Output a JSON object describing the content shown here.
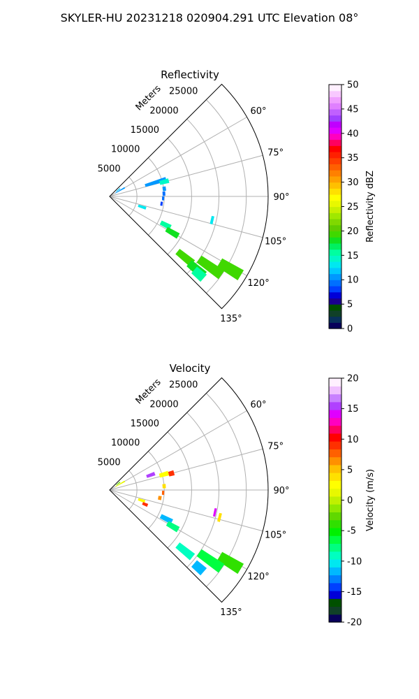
{
  "figure": {
    "title": "SKYLER-HU  20231218  020904.291 UTC Elevation 08°"
  },
  "chart_data": [
    {
      "type": "polar-sector",
      "title": "Reflectivity",
      "range_label": "Meters",
      "r_ticks": [
        5000,
        10000,
        15000,
        20000,
        25000
      ],
      "r_max": 29000,
      "theta_range_deg": [
        45,
        135
      ],
      "theta_ticks_deg": [
        60,
        75,
        90,
        105,
        120,
        135
      ],
      "colorbar": {
        "label": "Reflectivity dBZ",
        "min": 0,
        "max": 50,
        "ticks": [
          0,
          5,
          10,
          15,
          20,
          25,
          30,
          35,
          40,
          45,
          50
        ],
        "colors": [
          "#08005a",
          "#08305a",
          "#104028",
          "#005000",
          "#1a0090",
          "#0000d8",
          "#0040ff",
          "#0070ff",
          "#0098ff",
          "#00c8ff",
          "#00e8f0",
          "#00f8c8",
          "#00ffa0",
          "#00f060",
          "#10e020",
          "#40d800",
          "#60cc00",
          "#80d800",
          "#a0e800",
          "#c8f000",
          "#e8f800",
          "#ffff00",
          "#ffe000",
          "#ffc000",
          "#ffa000",
          "#ff8000",
          "#ff6000",
          "#ff4000",
          "#ff2000",
          "#ff0000",
          "#ff0060",
          "#ff00c0",
          "#e000ff",
          "#c000ff",
          "#a040ff",
          "#c060ff",
          "#e080ff",
          "#f0a0ff",
          "#f8c8ff",
          "#fff0ff"
        ]
      },
      "echoes": [
        {
          "az": 53,
          "r0": 1500,
          "r1": 2400,
          "value": 12
        },
        {
          "az": 60,
          "r0": 1200,
          "r1": 3200,
          "value": 10
        },
        {
          "az": 73,
          "r0": 6800,
          "r1": 10800,
          "value": 10
        },
        {
          "az": 75,
          "r0": 9500,
          "r1": 11200,
          "value": 14
        },
        {
          "az": 82,
          "r0": 9800,
          "r1": 10400,
          "value": 11
        },
        {
          "az": 87,
          "r0": 9700,
          "r1": 10200,
          "value": 9
        },
        {
          "az": 92,
          "r0": 9600,
          "r1": 10000,
          "value": 9
        },
        {
          "az": 98,
          "r0": 9400,
          "r1": 9800,
          "value": 8
        },
        {
          "az": 108,
          "r0": 5500,
          "r1": 7000,
          "value": 13
        },
        {
          "az": 117,
          "r0": 10500,
          "r1": 12500,
          "value": 15
        },
        {
          "az": 120,
          "r0": 12000,
          "r1": 14500,
          "value": 18
        },
        {
          "az": 121,
          "r0": 23500,
          "r1": 28000,
          "value": 19
        },
        {
          "az": 125,
          "r0": 20000,
          "r1": 25000,
          "value": 19
        },
        {
          "az": 129,
          "r0": 16000,
          "r1": 19500,
          "value": 19
        },
        {
          "az": 130,
          "r0": 19000,
          "r1": 22500,
          "value": 18
        },
        {
          "az": 131,
          "r0": 20500,
          "r1": 22800,
          "value": 15
        },
        {
          "az": 103,
          "r0": 19000,
          "r1": 19500,
          "value": 13
        }
      ]
    },
    {
      "type": "polar-sector",
      "title": "Velocity",
      "range_label": "Meters",
      "r_ticks": [
        5000,
        10000,
        15000,
        20000,
        25000
      ],
      "r_max": 29000,
      "theta_range_deg": [
        45,
        135
      ],
      "theta_ticks_deg": [
        60,
        75,
        90,
        105,
        120,
        135
      ],
      "colorbar": {
        "label": "Velocity (m/s)",
        "min": -20,
        "max": 20,
        "ticks": [
          -20,
          -15,
          -10,
          -5,
          0,
          5,
          10,
          15,
          20
        ],
        "colors": [
          "#08005a",
          "#104028",
          "#005000",
          "#0000d8",
          "#0040ff",
          "#0080ff",
          "#00b8ff",
          "#00e8f0",
          "#00ffc0",
          "#00ff80",
          "#00ff40",
          "#00f000",
          "#30e000",
          "#60d800",
          "#90e800",
          "#c0f000",
          "#e8f800",
          "#ffff00",
          "#ffe000",
          "#ffc000",
          "#ff9000",
          "#ff6000",
          "#ff3000",
          "#ff0000",
          "#ff0060",
          "#ff00c0",
          "#e000ff",
          "#b040ff",
          "#c880ff",
          "#f0c0ff",
          "#fff0ff"
        ]
      },
      "echoes": [
        {
          "az": 53,
          "r0": 1500,
          "r1": 2400,
          "value": -3
        },
        {
          "az": 60,
          "r0": 1200,
          "r1": 3200,
          "value": 1
        },
        {
          "az": 70,
          "r0": 7200,
          "r1": 8800,
          "value": 16
        },
        {
          "az": 74,
          "r0": 9500,
          "r1": 11200,
          "value": 3
        },
        {
          "az": 75,
          "r0": 11200,
          "r1": 12200,
          "value": 9
        },
        {
          "az": 86,
          "r0": 9700,
          "r1": 10300,
          "value": 4
        },
        {
          "az": 93,
          "r0": 9600,
          "r1": 10000,
          "value": 8
        },
        {
          "az": 99,
          "r0": 9000,
          "r1": 9600,
          "value": 6
        },
        {
          "az": 108,
          "r0": 5500,
          "r1": 6800,
          "value": 2
        },
        {
          "az": 112,
          "r0": 6500,
          "r1": 7500,
          "value": 9
        },
        {
          "az": 117,
          "r0": 10500,
          "r1": 12800,
          "value": -12
        },
        {
          "az": 120,
          "r0": 12200,
          "r1": 14500,
          "value": -8
        },
        {
          "az": 121,
          "r0": 23500,
          "r1": 28000,
          "value": -4
        },
        {
          "az": 125,
          "r0": 20000,
          "r1": 25000,
          "value": -6
        },
        {
          "az": 129,
          "r0": 16000,
          "r1": 19500,
          "value": -9
        },
        {
          "az": 131,
          "r0": 20500,
          "r1": 22800,
          "value": -11
        },
        {
          "az": 102,
          "r0": 19500,
          "r1": 19900,
          "value": 14
        },
        {
          "az": 104,
          "r0": 20500,
          "r1": 21000,
          "value": 4
        }
      ]
    }
  ]
}
